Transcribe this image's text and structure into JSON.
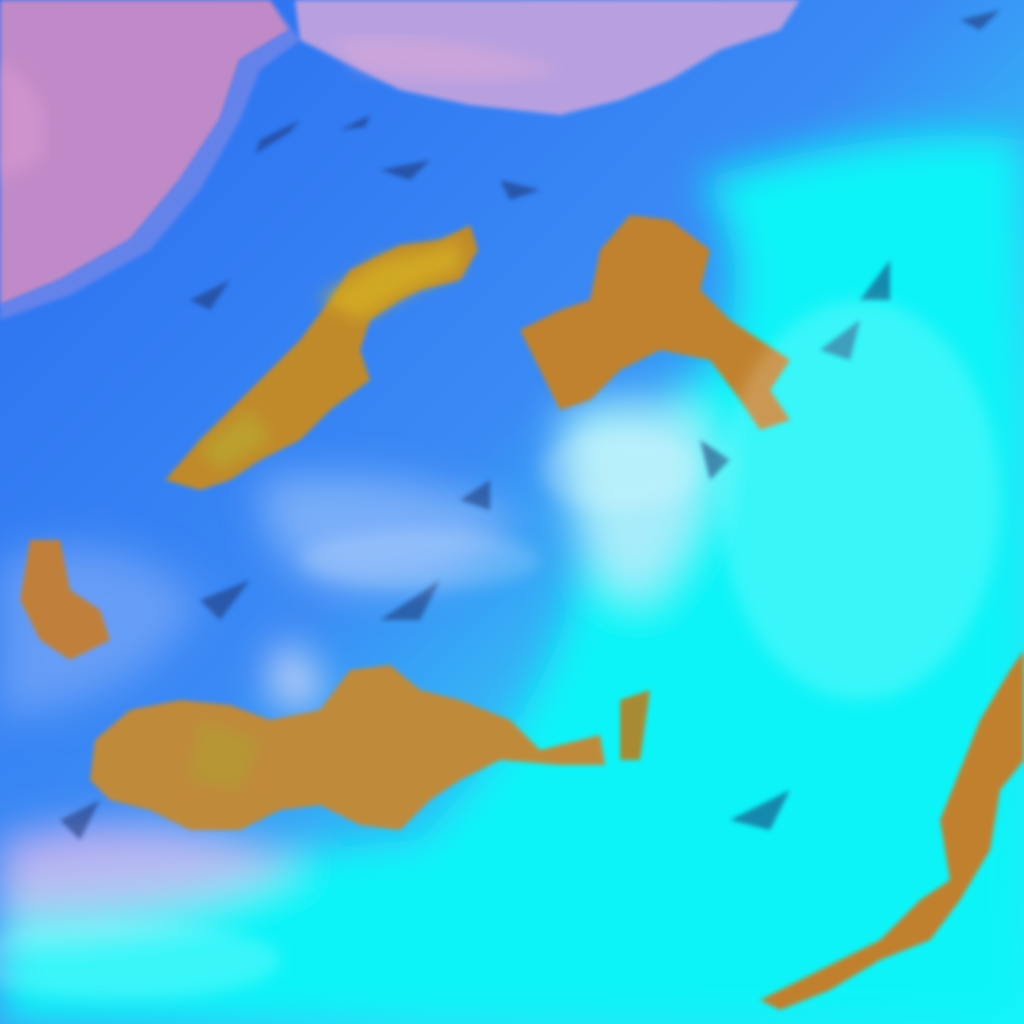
{
  "image": {
    "kind": "false-color satellite cloud imagery",
    "colors": {
      "land": "#c08ac8",
      "land_coast": "#9a8ae0",
      "ocean_deep": "#2a6cf0",
      "ocean_mid": "#3a9af5",
      "low_cloud": "#10f4f8",
      "haze": "#c0d8f8",
      "high_cloud": "#c08a30",
      "high_cloud_core": "#d4a020",
      "cloud_shadow": "#1a3a70"
    }
  }
}
